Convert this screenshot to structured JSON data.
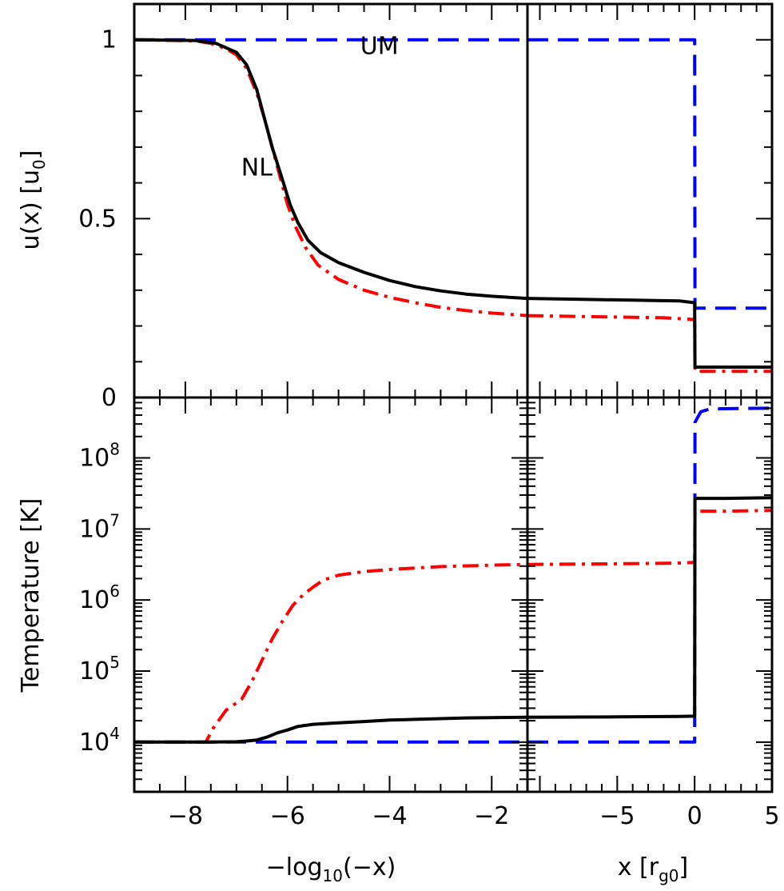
{
  "chart_data": [
    {
      "panel": "top-left",
      "type": "line",
      "ylabel": "u(x)  [u0]",
      "ylabel_parts": {
        "main": "u(x)  [u",
        "sub": "0",
        "end": "]"
      },
      "xlim": [
        -9,
        -1.3
      ],
      "ylim": [
        0,
        1.1
      ],
      "yticks": [
        0,
        0.5,
        1
      ],
      "ytick_labels": [
        "0",
        "0.5",
        "1"
      ],
      "annotations": [
        {
          "text": "UM",
          "x": -4.2,
          "y": 0.96
        },
        {
          "text": "NL",
          "x": -6.6,
          "y": 0.62
        }
      ],
      "series": [
        {
          "id": "black",
          "color": "#000000",
          "style": "solid",
          "points": [
            [
              -9,
              1.0
            ],
            [
              -7.8,
              0.998
            ],
            [
              -7.4,
              0.99
            ],
            [
              -7.0,
              0.965
            ],
            [
              -6.8,
              0.93
            ],
            [
              -6.6,
              0.86
            ],
            [
              -6.45,
              0.78
            ],
            [
              -6.3,
              0.7
            ],
            [
              -6.1,
              0.61
            ],
            [
              -5.95,
              0.54
            ],
            [
              -5.8,
              0.49
            ],
            [
              -5.6,
              0.44
            ],
            [
              -5.35,
              0.405
            ],
            [
              -5.0,
              0.377
            ],
            [
              -4.5,
              0.35
            ],
            [
              -4.0,
              0.327
            ],
            [
              -3.5,
              0.31
            ],
            [
              -3.0,
              0.298
            ],
            [
              -2.5,
              0.289
            ],
            [
              -2.0,
              0.283
            ],
            [
              -1.3,
              0.277
            ]
          ]
        },
        {
          "id": "red",
          "color": "#ff0000",
          "style": "dashdot",
          "points": [
            [
              -9,
              1.0
            ],
            [
              -7.8,
              0.997
            ],
            [
              -7.5,
              0.99
            ],
            [
              -7.2,
              0.975
            ],
            [
              -7.0,
              0.958
            ],
            [
              -6.8,
              0.92
            ],
            [
              -6.6,
              0.85
            ],
            [
              -6.45,
              0.78
            ],
            [
              -6.3,
              0.7
            ],
            [
              -6.15,
              0.62
            ],
            [
              -6.0,
              0.54
            ],
            [
              -5.85,
              0.48
            ],
            [
              -5.65,
              0.42
            ],
            [
              -5.4,
              0.37
            ],
            [
              -5.0,
              0.33
            ],
            [
              -4.5,
              0.3
            ],
            [
              -4.0,
              0.28
            ],
            [
              -3.5,
              0.265
            ],
            [
              -3.0,
              0.252
            ],
            [
              -2.5,
              0.243
            ],
            [
              -2.0,
              0.236
            ],
            [
              -1.3,
              0.229
            ]
          ]
        },
        {
          "id": "blue",
          "color": "#0000ff",
          "style": "dashed",
          "points": [
            [
              -9,
              1.0
            ],
            [
              -1.3,
              1.0
            ]
          ]
        }
      ]
    },
    {
      "panel": "top-right",
      "type": "line",
      "xlim": [
        -10.8,
        5
      ],
      "ylim": [
        0,
        1.1
      ],
      "series": [
        {
          "id": "black",
          "color": "#000000",
          "style": "solid",
          "points": [
            [
              -10.8,
              0.277
            ],
            [
              -8,
              0.275
            ],
            [
              -4,
              0.272
            ],
            [
              -1,
              0.27
            ],
            [
              0,
              0.265
            ],
            [
              0.02,
              0.085
            ],
            [
              5,
              0.085
            ]
          ]
        },
        {
          "id": "red",
          "color": "#ff0000",
          "style": "dashdot",
          "points": [
            [
              -10.8,
              0.229
            ],
            [
              -8,
              0.227
            ],
            [
              -5,
              0.225
            ],
            [
              -2,
              0.223
            ],
            [
              0,
              0.218
            ],
            [
              0.02,
              0.073
            ],
            [
              5,
              0.073
            ]
          ]
        },
        {
          "id": "blue",
          "color": "#0000ff",
          "style": "dashed",
          "points": [
            [
              -10.8,
              1.0
            ],
            [
              0,
              1.0
            ],
            [
              0.02,
              0.25
            ],
            [
              5,
              0.25
            ]
          ]
        }
      ]
    },
    {
      "panel": "bottom-left",
      "type": "line",
      "ylabel": "Temperature  [K]",
      "xlabel_parts": {
        "main": "−log",
        "sub": "10",
        "end": "(−x)"
      },
      "xlim": [
        -9,
        -1.3
      ],
      "ylim_log10": [
        3.3,
        8.85
      ],
      "xticks": [
        -8,
        -6,
        -4,
        -2
      ],
      "xtick_labels": [
        "−8",
        "−6",
        "−4",
        "−2"
      ],
      "yticks_log10": [
        4,
        5,
        6,
        7,
        8
      ],
      "ytick_labels": [
        {
          "base": "10",
          "exp": "4"
        },
        {
          "base": "10",
          "exp": "5"
        },
        {
          "base": "10",
          "exp": "6"
        },
        {
          "base": "10",
          "exp": "7"
        },
        {
          "base": "10",
          "exp": "8"
        }
      ],
      "series": [
        {
          "id": "black",
          "color": "#000000",
          "style": "solid",
          "points_log10": [
            [
              -9,
              4.0
            ],
            [
              -7.5,
              4.0
            ],
            [
              -7.0,
              4.005
            ],
            [
              -6.8,
              4.015
            ],
            [
              -6.6,
              4.03
            ],
            [
              -6.4,
              4.07
            ],
            [
              -6.2,
              4.13
            ],
            [
              -6.0,
              4.17
            ],
            [
              -5.8,
              4.22
            ],
            [
              -5.5,
              4.25
            ],
            [
              -5.0,
              4.27
            ],
            [
              -4.5,
              4.29
            ],
            [
              -4.0,
              4.31
            ],
            [
              -3.5,
              4.32
            ],
            [
              -3.0,
              4.33
            ],
            [
              -2.5,
              4.34
            ],
            [
              -2.0,
              4.345
            ],
            [
              -1.3,
              4.35
            ]
          ]
        },
        {
          "id": "red",
          "color": "#ff0000",
          "style": "dashdot",
          "points_log10": [
            [
              -9,
              4.0
            ],
            [
              -7.6,
              4.0
            ],
            [
              -7.45,
              4.2
            ],
            [
              -7.2,
              4.45
            ],
            [
              -6.9,
              4.6
            ],
            [
              -6.7,
              4.85
            ],
            [
              -6.5,
              5.15
            ],
            [
              -6.3,
              5.45
            ],
            [
              -6.1,
              5.7
            ],
            [
              -5.9,
              5.92
            ],
            [
              -5.7,
              6.07
            ],
            [
              -5.5,
              6.18
            ],
            [
              -5.3,
              6.28
            ],
            [
              -5.0,
              6.35
            ],
            [
              -4.5,
              6.4
            ],
            [
              -4.0,
              6.43
            ],
            [
              -3.5,
              6.45
            ],
            [
              -3.0,
              6.47
            ],
            [
              -2.5,
              6.48
            ],
            [
              -2.0,
              6.49
            ],
            [
              -1.3,
              6.5
            ]
          ]
        },
        {
          "id": "blue",
          "color": "#0000ff",
          "style": "dashed",
          "points_log10": [
            [
              -9,
              4.0
            ],
            [
              -1.3,
              4.0
            ]
          ]
        }
      ]
    },
    {
      "panel": "bottom-right",
      "type": "line",
      "xlabel_parts": {
        "main": "x  [r",
        "sub": "g0",
        "end": "]"
      },
      "xlim": [
        -10.8,
        5
      ],
      "ylim_log10": [
        3.3,
        8.85
      ],
      "xticks": [
        -5,
        0,
        5
      ],
      "xtick_labels": [
        "−5",
        "0",
        "5"
      ],
      "series": [
        {
          "id": "black",
          "color": "#000000",
          "style": "solid",
          "points_log10": [
            [
              -10.8,
              4.35
            ],
            [
              -5,
              4.355
            ],
            [
              -1,
              4.36
            ],
            [
              0,
              4.365
            ],
            [
              0.02,
              7.43
            ],
            [
              2,
              7.43
            ],
            [
              5,
              7.44
            ]
          ]
        },
        {
          "id": "red",
          "color": "#ff0000",
          "style": "dashdot",
          "points_log10": [
            [
              -10.8,
              6.5
            ],
            [
              -5,
              6.51
            ],
            [
              -1,
              6.52
            ],
            [
              0,
              6.53
            ],
            [
              0.02,
              7.25
            ],
            [
              2,
              7.25
            ],
            [
              5,
              7.26
            ]
          ]
        },
        {
          "id": "blue",
          "color": "#0000ff",
          "style": "dashed",
          "points_log10": [
            [
              -10.8,
              4.0
            ],
            [
              0,
              4.0
            ],
            [
              0.02,
              8.5
            ],
            [
              0.4,
              8.65
            ],
            [
              1.0,
              8.69
            ],
            [
              5,
              8.7
            ]
          ]
        }
      ]
    }
  ]
}
